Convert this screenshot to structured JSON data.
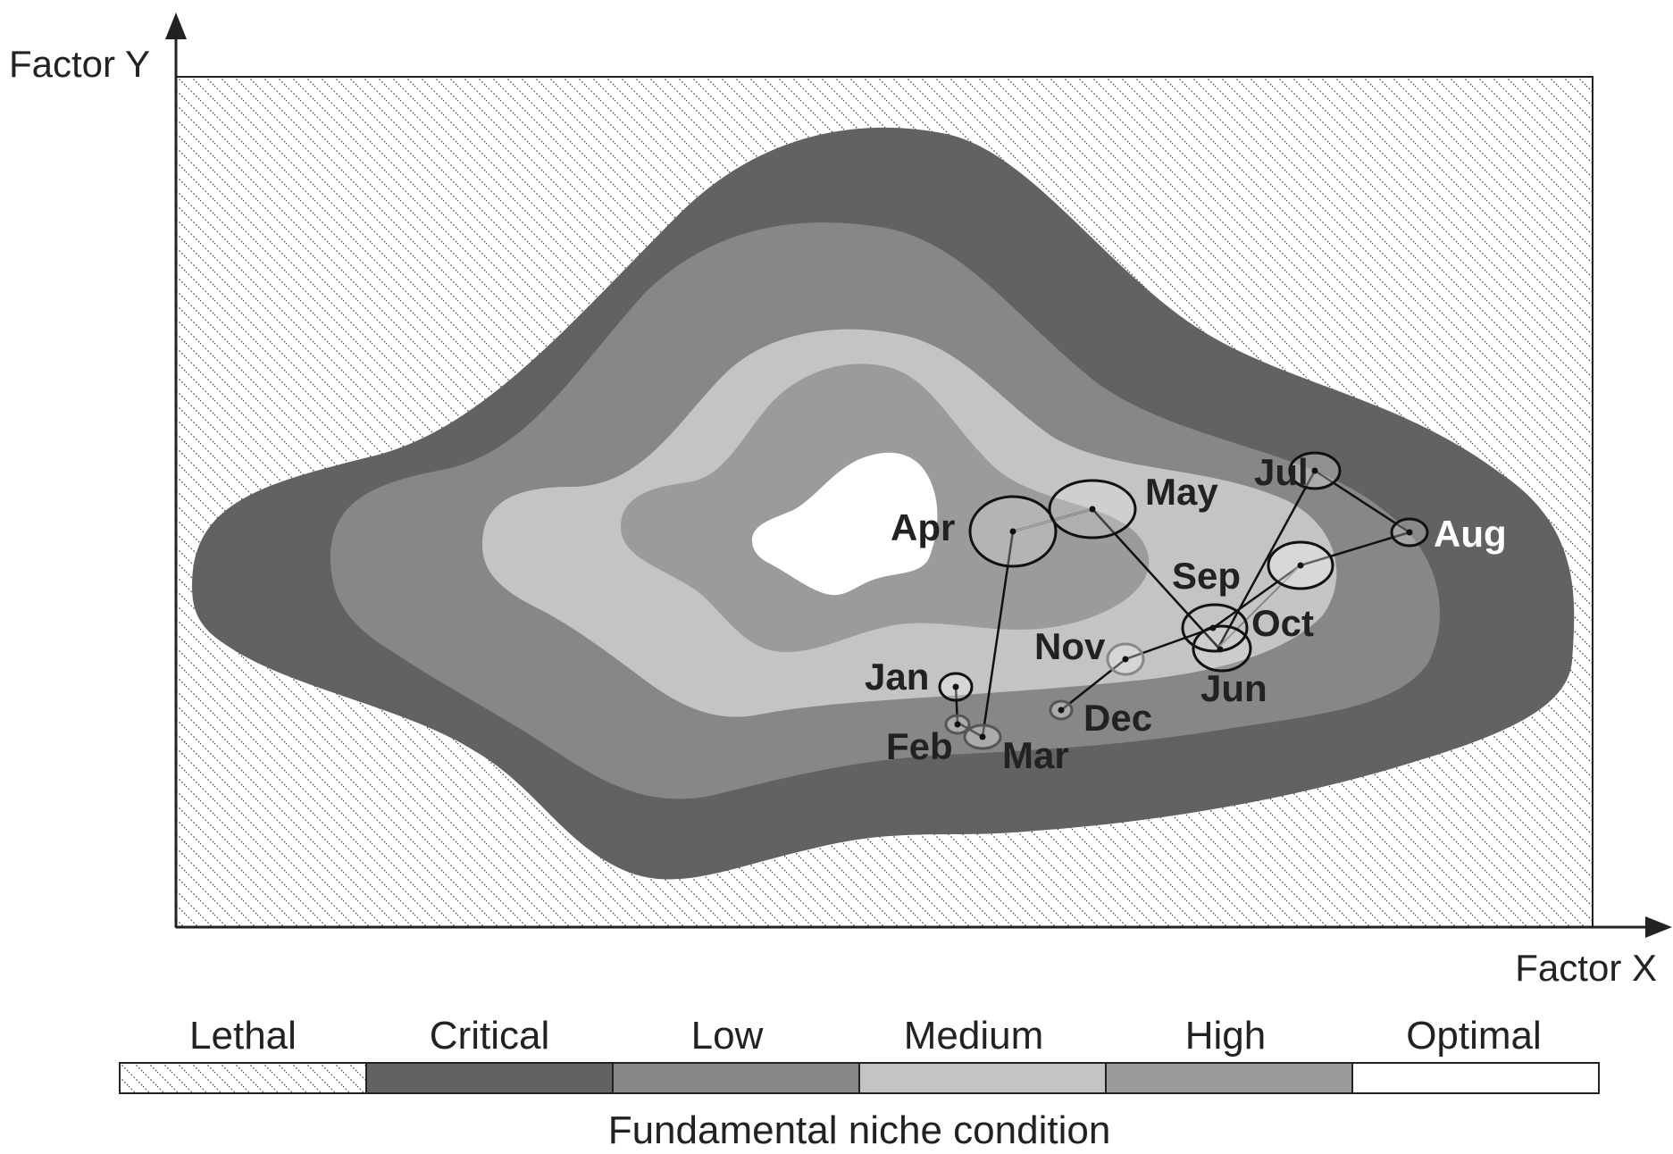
{
  "axes": {
    "x_label": "Factor X",
    "y_label": "Factor Y"
  },
  "months": [
    {
      "name": "Jan"
    },
    {
      "name": "Feb"
    },
    {
      "name": "Mar"
    },
    {
      "name": "Apr"
    },
    {
      "name": "May"
    },
    {
      "name": "Jun"
    },
    {
      "name": "Jul"
    },
    {
      "name": "Aug"
    },
    {
      "name": "Sep"
    },
    {
      "name": "Oct"
    },
    {
      "name": "Nov"
    },
    {
      "name": "Dec"
    }
  ],
  "legend": {
    "title": "Fundamental niche condition",
    "items": [
      {
        "label": "Lethal",
        "color": "hatched"
      },
      {
        "label": "Critical",
        "color": "#626262"
      },
      {
        "label": "Low",
        "color": "#878787"
      },
      {
        "label": "Medium",
        "color": "#c4c4c4"
      },
      {
        "label": "High",
        "color": "#9b9b9b"
      },
      {
        "label": "Optimal",
        "color": "#ffffff"
      }
    ]
  }
}
